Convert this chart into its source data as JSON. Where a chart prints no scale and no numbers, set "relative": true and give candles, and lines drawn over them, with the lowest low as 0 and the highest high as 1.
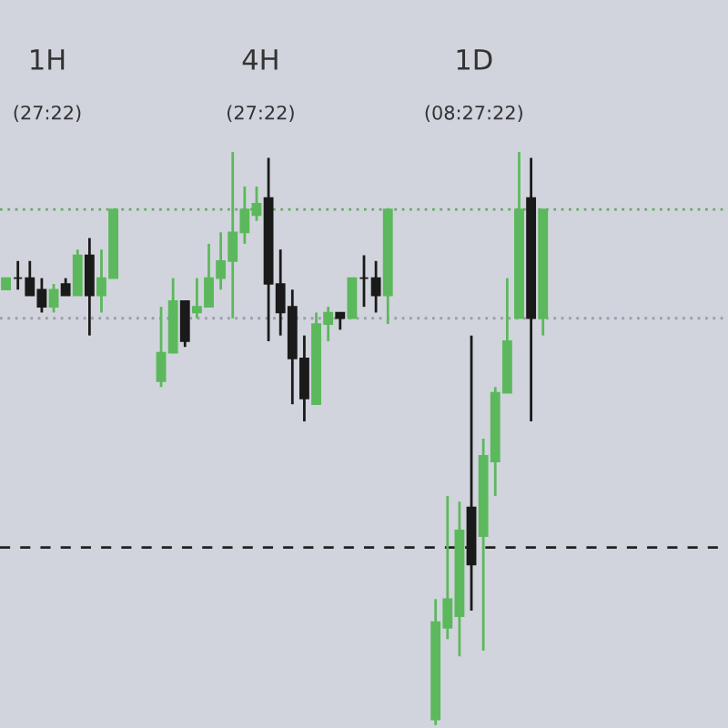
{
  "chart_data": {
    "type": "candlestick",
    "relative": true,
    "annotations": [
      "1H",
      "(27:22)",
      "4H",
      "(27:22)",
      "1D",
      "(08:27:22)"
    ],
    "categories": [
      null,
      null,
      null,
      null,
      null,
      null,
      null,
      null,
      null,
      null,
      null,
      null,
      null,
      null,
      null,
      null,
      null,
      null,
      null,
      null,
      null,
      null,
      null,
      null,
      null,
      null,
      null,
      null,
      null,
      null,
      null,
      null,
      null,
      null,
      null,
      null,
      null,
      null,
      null,
      null,
      null,
      null,
      null,
      null,
      null,
      null,
      null,
      null,
      null,
      null,
      null,
      null,
      null,
      null,
      null,
      null,
      null,
      null,
      null,
      null,
      null
    ],
    "ohlc": [
      [
        0.76,
        0.78,
        0.76,
        0.78
      ],
      [
        0.78,
        0.81,
        0.76,
        0.78
      ],
      [
        0.78,
        0.81,
        0.75,
        0.75
      ],
      [
        0.76,
        0.78,
        0.72,
        0.73
      ],
      [
        0.73,
        0.77,
        0.72,
        0.76
      ],
      [
        0.77,
        0.78,
        0.75,
        0.75
      ],
      [
        0.75,
        0.83,
        0.75,
        0.82
      ],
      [
        0.82,
        0.85,
        0.68,
        0.75
      ],
      [
        0.75,
        0.83,
        0.72,
        0.78
      ],
      [
        0.78,
        0.9,
        0.78,
        0.9
      ],
      null,
      null,
      null,
      [
        0.6,
        0.73,
        0.59,
        0.65
      ],
      [
        0.65,
        0.78,
        0.65,
        0.74
      ],
      [
        0.74,
        0.74,
        0.66,
        0.67
      ],
      [
        0.72,
        0.78,
        0.71,
        0.73
      ],
      [
        0.73,
        0.84,
        0.73,
        0.78
      ],
      [
        0.78,
        0.86,
        0.76,
        0.81
      ],
      [
        0.81,
        1.0,
        0.71,
        0.86
      ],
      [
        0.86,
        0.94,
        0.84,
        0.9
      ],
      [
        0.89,
        0.94,
        0.88,
        0.91
      ],
      [
        0.92,
        0.99,
        0.67,
        0.77
      ],
      [
        0.77,
        0.83,
        0.68,
        0.72
      ],
      [
        0.73,
        0.76,
        0.56,
        0.64
      ],
      [
        0.64,
        0.68,
        0.53,
        0.57
      ],
      [
        0.56,
        0.72,
        0.56,
        0.7
      ],
      [
        0.7,
        0.73,
        0.67,
        0.72
      ],
      [
        0.72,
        0.72,
        0.69,
        0.71
      ],
      [
        0.71,
        0.78,
        0.71,
        0.78
      ],
      [
        0.78,
        0.82,
        0.73,
        0.78
      ],
      [
        0.78,
        0.81,
        0.72,
        0.75
      ],
      [
        0.75,
        0.9,
        0.7,
        0.9
      ],
      null,
      null,
      null,
      [
        0.01,
        0.22,
        0,
        0.18
      ],
      [
        0.17,
        0.4,
        0.15,
        0.22
      ],
      [
        0.19,
        0.39,
        0.12,
        0.34
      ],
      [
        0.38,
        0.68,
        0.2,
        0.28
      ],
      [
        0.33,
        0.5,
        0.13,
        0.47
      ],
      [
        0.46,
        0.59,
        0.4,
        0.58
      ],
      [
        0.58,
        0.78,
        0.58,
        0.67
      ],
      [
        0.71,
        1.0,
        0.71,
        0.9
      ],
      [
        0.92,
        0.99,
        0.53,
        0.71
      ],
      [
        0.71,
        0.9,
        0.68,
        0.9
      ],
      null,
      null,
      null,
      null,
      null,
      null,
      null,
      null,
      null,
      null,
      null,
      null,
      null,
      null,
      null
    ],
    "colors": [
      "#5cb85c",
      "#1a1a1a",
      "#1a1a1a",
      "#1a1a1a",
      "#5cb85c",
      "#1a1a1a",
      "#5cb85c",
      "#1a1a1a",
      "#5cb85c",
      "#5cb85c",
      null,
      null,
      null,
      "#5cb85c",
      "#5cb85c",
      "#1a1a1a",
      "#5cb85c",
      "#5cb85c",
      "#5cb85c",
      "#5cb85c",
      "#5cb85c",
      "#5cb85c",
      "#1a1a1a",
      "#1a1a1a",
      "#1a1a1a",
      "#1a1a1a",
      "#5cb85c",
      "#5cb85c",
      "#1a1a1a",
      "#5cb85c",
      "#1a1a1a",
      "#1a1a1a",
      "#5cb85c",
      null,
      null,
      null,
      "#5cb85c",
      "#5cb85c",
      "#5cb85c",
      "#1a1a1a",
      "#5cb85c",
      "#5cb85c",
      "#5cb85c",
      "#5cb85c",
      "#1a1a1a",
      "#5cb85c",
      null,
      null,
      null,
      null,
      null,
      null,
      null,
      null,
      null,
      null,
      null,
      null,
      null,
      null,
      null
    ],
    "ref_lines": [
      {
        "axis": "y",
        "value": 0.9,
        "color": "#6aa86a",
        "line_style": "dotted"
      },
      {
        "axis": "y",
        "value": 0.71,
        "color": "#9a9ea8",
        "line_style": "dotted"
      },
      {
        "axis": "y",
        "value": 0.31,
        "color": "#222222",
        "line_style": "dashed"
      }
    ]
  }
}
